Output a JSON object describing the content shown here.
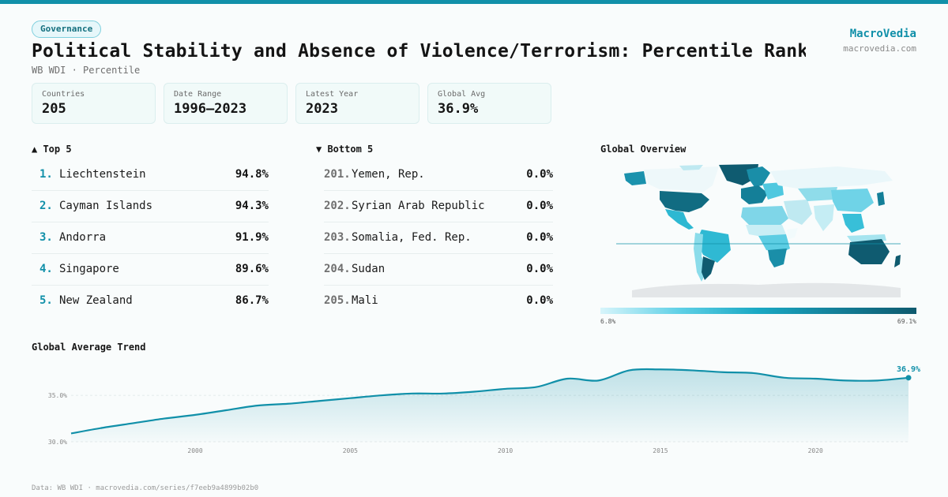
{
  "header": {
    "tag": "Governance",
    "title": "Political Stability and Absence of Violence/Terrorism: Percentile Rank, …",
    "subtitle": "WB WDI · Percentile",
    "brand": "MacroVedia",
    "brand_url": "macrovedia.com"
  },
  "stats": [
    {
      "label": "Countries",
      "value": "205"
    },
    {
      "label": "Date Range",
      "value": "1996–2023"
    },
    {
      "label": "Latest Year",
      "value": "2023"
    },
    {
      "label": "Global Avg",
      "value": "36.9%"
    }
  ],
  "top5": {
    "heading": "▲ Top 5",
    "items": [
      {
        "rank": "1.",
        "name": "Liechtenstein",
        "value": "94.8%"
      },
      {
        "rank": "2.",
        "name": "Cayman Islands",
        "value": "94.3%"
      },
      {
        "rank": "3.",
        "name": "Andorra",
        "value": "91.9%"
      },
      {
        "rank": "4.",
        "name": "Singapore",
        "value": "89.6%"
      },
      {
        "rank": "5.",
        "name": "New Zealand",
        "value": "86.7%"
      }
    ]
  },
  "bottom5": {
    "heading": "▼ Bottom 5",
    "items": [
      {
        "rank": "201.",
        "name": "Yemen, Rep.",
        "value": "0.0%"
      },
      {
        "rank": "202.",
        "name": "Syrian Arab Republic",
        "value": "0.0%"
      },
      {
        "rank": "203.",
        "name": "Somalia, Fed. Rep.",
        "value": "0.0%"
      },
      {
        "rank": "204.",
        "name": "Sudan",
        "value": "0.0%"
      },
      {
        "rank": "205.",
        "name": "Mali",
        "value": "0.0%"
      }
    ]
  },
  "map": {
    "heading": "Global Overview",
    "legend_min": "6.8%",
    "legend_max": "69.1%"
  },
  "trend": {
    "heading": "Global Average Trend",
    "last_label": "36.9%"
  },
  "footer": "Data: WB WDI · macrovedia.com/series/f7eeb9a4899b02b0",
  "colors": {
    "accent": "#1190a9",
    "area_fill": "#d6f3f8"
  },
  "chart_data": {
    "type": "area",
    "title": "Global Average Trend",
    "xlabel": "",
    "ylabel": "",
    "x": [
      1996,
      1997,
      1998,
      1999,
      2000,
      2001,
      2002,
      2003,
      2004,
      2005,
      2006,
      2007,
      2008,
      2009,
      2010,
      2011,
      2012,
      2013,
      2014,
      2015,
      2016,
      2017,
      2018,
      2019,
      2020,
      2021,
      2022,
      2023
    ],
    "series": [
      {
        "values": [
          30.9,
          31.5,
          32.0,
          32.5,
          32.9,
          33.4,
          33.9,
          34.1,
          34.4,
          34.7,
          35.0,
          35.2,
          35.2,
          35.4,
          35.7,
          35.9,
          36.8,
          36.6,
          37.7,
          37.8,
          37.7,
          37.5,
          37.4,
          36.9,
          36.8,
          36.6,
          36.6,
          36.9
        ]
      }
    ],
    "xticks": [
      2000,
      2005,
      2010,
      2015,
      2020
    ],
    "yticks": [
      30.0,
      35.0
    ],
    "ytick_labels": [
      "30.0%",
      "35.0%"
    ],
    "ylim": [
      30.0,
      38.5
    ],
    "xlim": [
      1996,
      2023
    ],
    "grid": true,
    "end_label": "36.9%"
  }
}
